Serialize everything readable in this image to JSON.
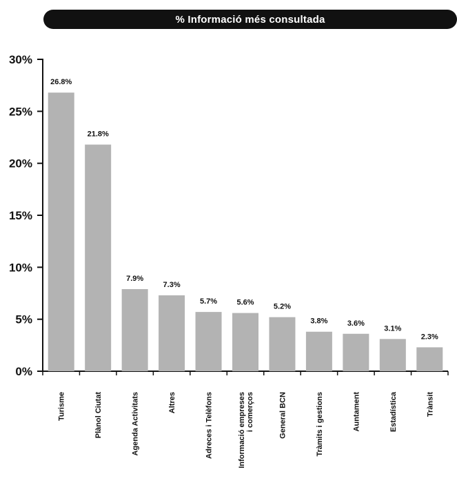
{
  "chart_data": {
    "type": "bar",
    "title": "% Informació més consultada",
    "categories": [
      "Turisme",
      "Plànol Ciutat",
      "Agenda Activitats",
      "Altres",
      "Adreces i Telèfons",
      [
        "Informació empreses",
        "i comerços"
      ],
      "General BCN",
      "Tràmits i gestions",
      "Auntament",
      "Estadística",
      "Trànsit"
    ],
    "values": [
      26.8,
      21.8,
      7.9,
      7.3,
      5.7,
      5.6,
      5.2,
      3.8,
      3.6,
      3.1,
      2.3
    ],
    "value_labels": [
      "26.8%",
      "21.8%",
      "7.9%",
      "7.3%",
      "5.7%",
      "5.6%",
      "5.2%",
      "3.8%",
      "3.6%",
      "3.1%",
      "2.3%"
    ],
    "yticks": [
      0,
      5,
      10,
      15,
      20,
      25,
      30
    ],
    "ytick_labels": [
      "0%",
      "5%",
      "10%",
      "15%",
      "20%",
      "25%",
      "30%"
    ],
    "ylim": [
      0,
      30
    ],
    "xlabel": "",
    "ylabel": "",
    "legend": "none",
    "grid": false,
    "bar_color": "#b3b3b3"
  }
}
